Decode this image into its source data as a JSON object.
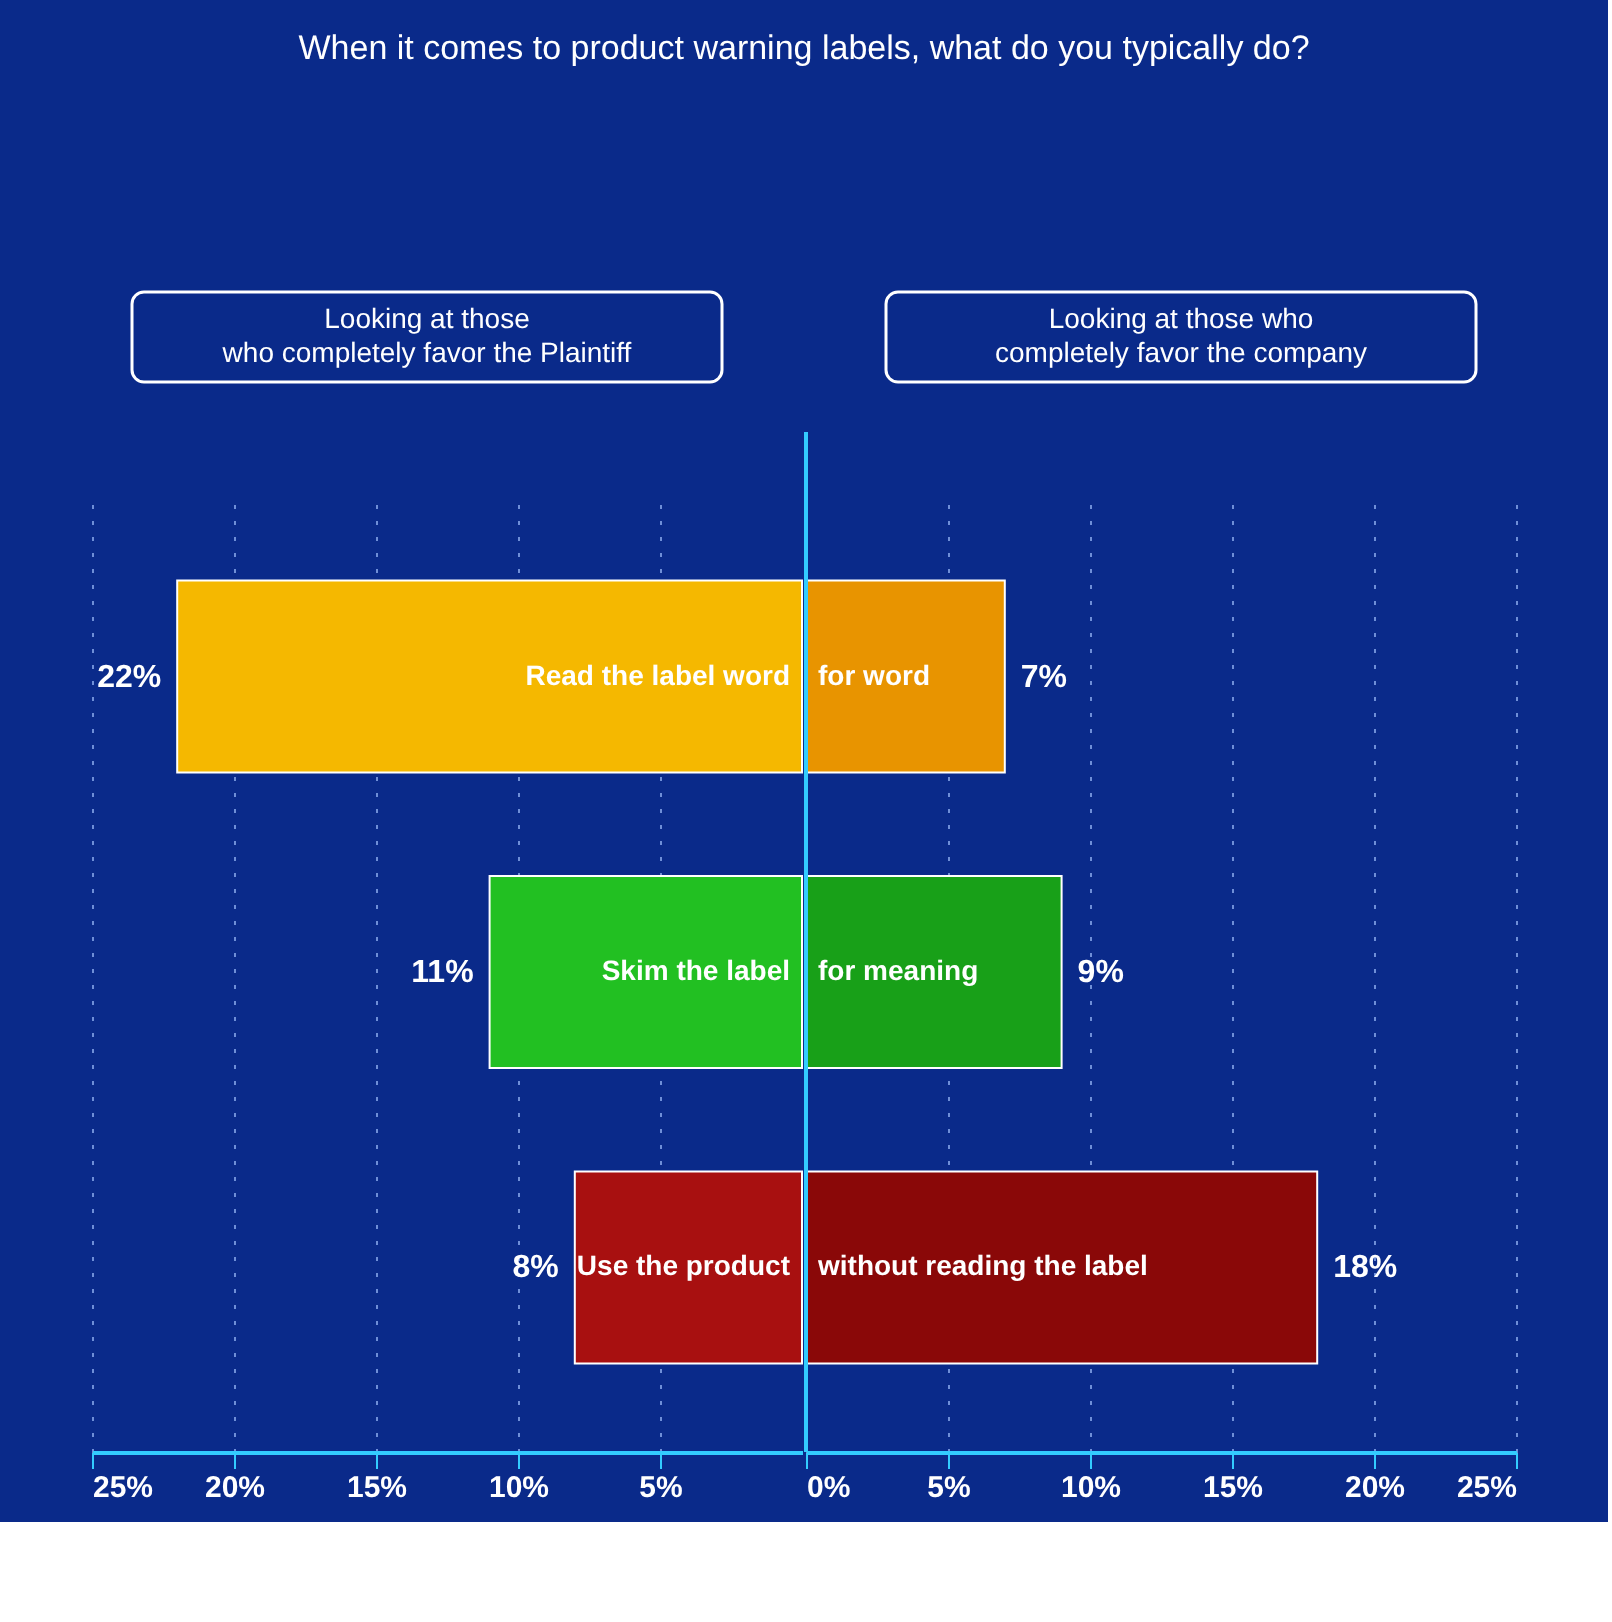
{
  "chart_data": [
    {
      "type": "bar",
      "orientation": "horizontal",
      "title": "When it comes to product warning labels, what do you typically do?",
      "categories": [
        "Read the label word",
        "Skim the label",
        "Use the product"
      ],
      "series": [
        {
          "name": "Looking at those who completely favor the Plaintiff",
          "colors": [
            "#f5b800",
            "#22c022",
            "#a81010"
          ],
          "values": [
            22,
            11,
            8
          ],
          "value_labels": [
            "22%",
            "11%",
            "8%"
          ]
        }
      ],
      "xlim": [
        25,
        0
      ],
      "xticks": [
        {
          "value": 25,
          "label": "25%"
        },
        {
          "value": 20,
          "label": "20%"
        },
        {
          "value": 15,
          "label": "15%"
        },
        {
          "value": 10,
          "label": "10%"
        },
        {
          "value": 5,
          "label": "5%"
        }
      ],
      "grid": "x",
      "legend": "top"
    },
    {
      "type": "bar",
      "orientation": "horizontal",
      "categories": [
        "for word",
        "for meaning",
        "without reading the label"
      ],
      "series": [
        {
          "name": "Looking at those who completely favor the company",
          "colors": [
            "#e89400",
            "#18a018",
            "#8a0808"
          ],
          "values": [
            7,
            9,
            18
          ],
          "value_labels": [
            "7%",
            "9%",
            "18%"
          ]
        }
      ],
      "xlim": [
        0,
        25
      ],
      "xticks": [
        {
          "value": 0,
          "label": "0%"
        },
        {
          "value": 5,
          "label": "5%"
        },
        {
          "value": 10,
          "label": "10%"
        },
        {
          "value": 15,
          "label": "15%"
        },
        {
          "value": 20,
          "label": "20%"
        },
        {
          "value": 25,
          "label": "25%"
        }
      ],
      "ref_lines": [
        {
          "axis": "x",
          "value": 0,
          "color": "#33ccff"
        }
      ],
      "grid": "x",
      "legend": "top"
    }
  ]
}
